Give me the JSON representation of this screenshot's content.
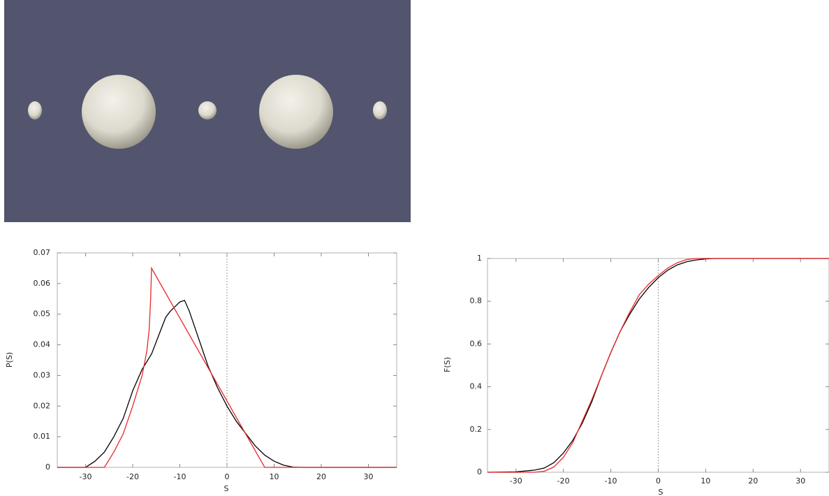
{
  "chart_data": [
    {
      "type": "line",
      "xlabel": "S",
      "ylabel": "P(S)",
      "xlim": [
        -36,
        36
      ],
      "ylim": [
        0,
        0.07
      ],
      "xticks": [
        -30,
        -20,
        -10,
        0,
        10,
        20,
        30
      ],
      "yticks": [
        0,
        0.01,
        0.02,
        0.03,
        0.04,
        0.05,
        0.06,
        0.07
      ],
      "zero_line": true,
      "series": [
        {
          "color": "#000000",
          "x": [
            -36,
            -30,
            -28,
            -26,
            -24,
            -22,
            -20,
            -18,
            -16,
            -14,
            -13,
            -12,
            -10,
            -9,
            -8,
            -6,
            -4,
            -2,
            0,
            2,
            4,
            6,
            8,
            10,
            12,
            14,
            16,
            36
          ],
          "values": [
            0,
            0,
            0.002,
            0.005,
            0.01,
            0.016,
            0.025,
            0.032,
            0.037,
            0.045,
            0.049,
            0.051,
            0.054,
            0.0545,
            0.051,
            0.042,
            0.033,
            0.026,
            0.02,
            0.015,
            0.011,
            0.007,
            0.004,
            0.002,
            0.0007,
            0.0001,
            0,
            0
          ]
        },
        {
          "color": "#e8262a",
          "x": [
            -36,
            -26,
            -24,
            -22,
            -20,
            -18,
            -17,
            -16.5,
            -16.2,
            -16,
            8,
            36
          ],
          "values": [
            0,
            0,
            0.005,
            0.011,
            0.02,
            0.03,
            0.038,
            0.045,
            0.055,
            0.065,
            0,
            0
          ]
        }
      ]
    },
    {
      "type": "line",
      "xlabel": "S",
      "ylabel": "F(S)",
      "xlim": [
        -36,
        36
      ],
      "ylim": [
        0,
        1
      ],
      "xticks": [
        -30,
        -20,
        -10,
        0,
        10,
        20,
        30
      ],
      "yticks": [
        0,
        0.2,
        0.4,
        0.6,
        0.8,
        1
      ],
      "zero_line": true,
      "series": [
        {
          "color": "#000000",
          "x": [
            -36,
            -30,
            -26,
            -24,
            -22,
            -20,
            -18,
            -16,
            -14,
            -12,
            -10,
            -8,
            -6,
            -4,
            -2,
            0,
            2,
            4,
            6,
            8,
            10,
            12,
            36
          ],
          "values": [
            0,
            0.002,
            0.01,
            0.02,
            0.045,
            0.09,
            0.15,
            0.23,
            0.33,
            0.45,
            0.56,
            0.66,
            0.74,
            0.81,
            0.865,
            0.91,
            0.945,
            0.97,
            0.985,
            0.993,
            0.998,
            1,
            1
          ]
        },
        {
          "color": "#e8262a",
          "x": [
            -36,
            -26,
            -24,
            -22,
            -20,
            -18,
            -16,
            -14,
            -12,
            -10,
            -8,
            -6,
            -4,
            -2,
            0,
            2,
            4,
            6,
            8,
            36
          ],
          "values": [
            0,
            0,
            0.005,
            0.025,
            0.07,
            0.14,
            0.24,
            0.34,
            0.45,
            0.56,
            0.66,
            0.75,
            0.83,
            0.88,
            0.92,
            0.955,
            0.98,
            0.995,
            1,
            1
          ]
        }
      ]
    }
  ]
}
